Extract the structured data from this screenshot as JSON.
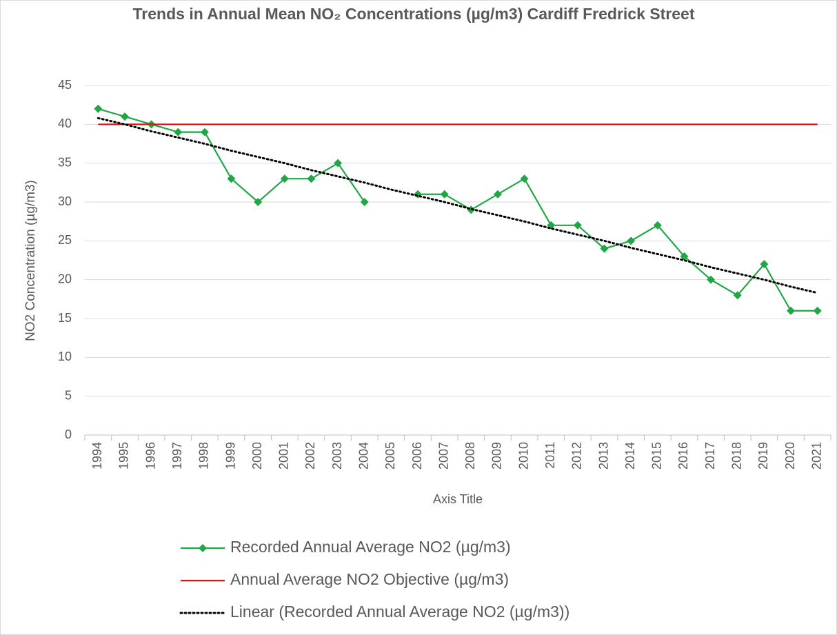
{
  "chart_data": {
    "type": "line",
    "title": "Trends in Annual Mean NO₂ Concentrations (µg/m3) Cardiff Fredrick Street",
    "x_label": "Axis Title",
    "y_label": "NO2 Concentration (µg/m3)",
    "categories": [
      "1994",
      "1995",
      "1996",
      "1997",
      "1998",
      "1999",
      "2000",
      "2001",
      "2002",
      "2003",
      "2004",
      "2005",
      "2006",
      "2007",
      "2008",
      "2009",
      "2010",
      "2011",
      "2012",
      "2013",
      "2014",
      "2015",
      "2016",
      "2017",
      "2018",
      "2019",
      "2020",
      "2021"
    ],
    "ylim": [
      0,
      45
    ],
    "yticks": [
      0,
      5,
      10,
      15,
      20,
      25,
      30,
      35,
      40,
      45
    ],
    "grid": true,
    "legend": "bottom",
    "series": [
      {
        "name": "Recorded Annual Average NO2  (µg/m3)",
        "color": "#21a645",
        "style": "solid",
        "marker": "diamond",
        "values": [
          42,
          41,
          40,
          39,
          39,
          33,
          30,
          33,
          33,
          35,
          30,
          null,
          31,
          31,
          29,
          31,
          33,
          27,
          27,
          24,
          25,
          27,
          23,
          20,
          18,
          22,
          16,
          16
        ]
      },
      {
        "name": "Annual Average NO2 Objective (µg/m3)",
        "color": "#e01010",
        "style": "solid",
        "marker": "none",
        "values": [
          40,
          40,
          40,
          40,
          40,
          40,
          40,
          40,
          40,
          40,
          40,
          40,
          40,
          40,
          40,
          40,
          40,
          40,
          40,
          40,
          40,
          40,
          40,
          40,
          40,
          40,
          40,
          40
        ]
      },
      {
        "name": "Linear (Recorded Annual Average NO2  (µg/m3))",
        "color": "#000000",
        "style": "dotted",
        "marker": "none",
        "values": [
          40.8,
          40.0,
          39.1,
          38.3,
          37.5,
          36.6,
          35.8,
          35.0,
          34.1,
          33.3,
          32.5,
          31.6,
          30.8,
          30.0,
          29.1,
          28.3,
          27.5,
          26.6,
          25.8,
          25.0,
          24.1,
          23.3,
          22.5,
          21.6,
          20.8,
          20.0,
          19.1,
          18.3
        ]
      }
    ]
  }
}
